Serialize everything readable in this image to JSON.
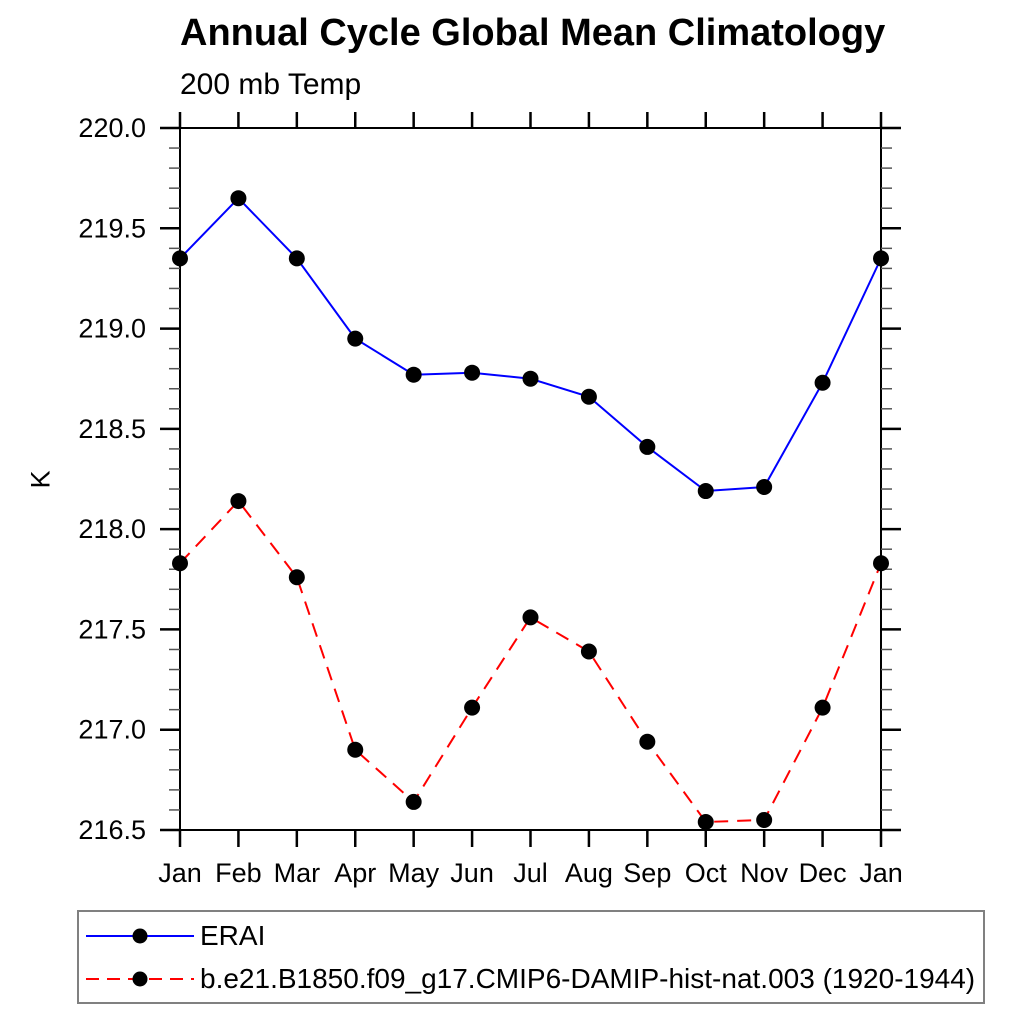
{
  "page": {
    "background_color": "#ffffff",
    "text_color": "#000000"
  },
  "chart_data": {
    "type": "line",
    "title": "Annual Cycle Global Mean Climatology",
    "subtitle": "200 mb Temp",
    "ylabel": "K",
    "xlabel": "",
    "ylim": [
      216.5,
      220.0
    ],
    "ytick_major_labels": [
      "216.5",
      "217.0",
      "217.5",
      "218.0",
      "218.5",
      "219.0",
      "219.5",
      "220.0"
    ],
    "ytick_minor_step": 0.1,
    "grid": false,
    "axis_color": "#000000",
    "frame": "box-with-outward-ticks",
    "categories": [
      "Jan",
      "Feb",
      "Mar",
      "Apr",
      "May",
      "Jun",
      "Jul",
      "Aug",
      "Sep",
      "Oct",
      "Nov",
      "Dec",
      "Jan"
    ],
    "series": [
      {
        "name": "ERAI",
        "color": "#0000ff",
        "line_style": "solid",
        "marker": "filled-circle",
        "marker_color": "#000000",
        "values": [
          219.35,
          219.65,
          219.35,
          218.95,
          218.77,
          218.78,
          218.75,
          218.66,
          218.41,
          218.19,
          218.21,
          218.73,
          219.35
        ]
      },
      {
        "name": "b.e21.B1850.f09_g17.CMIP6-DAMIP-hist-nat.003 (1920-1944)",
        "color": "#ff0000",
        "line_style": "dashed",
        "marker": "filled-circle",
        "marker_color": "#000000",
        "values": [
          217.83,
          218.14,
          217.76,
          216.9,
          216.64,
          217.11,
          217.56,
          217.39,
          216.94,
          216.54,
          216.55,
          217.11,
          217.83
        ]
      }
    ],
    "legend_position": "bottom-left"
  }
}
